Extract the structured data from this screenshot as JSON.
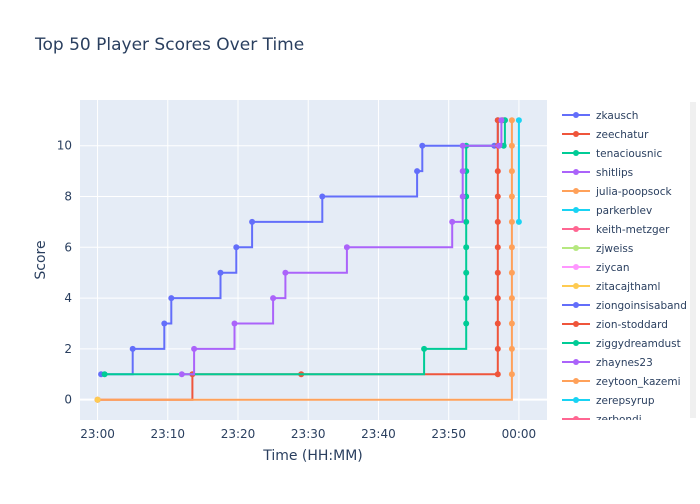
{
  "chart_data": {
    "type": "line",
    "line_shape": "step",
    "title": "Top 50 Player Scores Over Time",
    "xlabel": "Time (HH:MM)",
    "ylabel": "Score",
    "x_tick_labels": [
      "23:00",
      "23:10",
      "23:20",
      "23:30",
      "23:40",
      "23:50",
      "00:00"
    ],
    "y_ticks": [
      0,
      2,
      4,
      6,
      8,
      10
    ],
    "xlim": [
      "22:57:30",
      "00:04:00"
    ],
    "ylim": [
      -0.8,
      11.8
    ],
    "grid": true,
    "legend_position": "right",
    "background": "#e5ecf6",
    "series": [
      {
        "name": "zkausch",
        "color": "#636efa",
        "points": [
          [
            "23:00:30",
            1
          ],
          [
            "23:05:00",
            2
          ],
          [
            "23:09:30",
            3
          ],
          [
            "23:10:30",
            4
          ],
          [
            "23:17:30",
            5
          ],
          [
            "23:19:45",
            6
          ],
          [
            "23:22:00",
            7
          ],
          [
            "23:32:00",
            8
          ],
          [
            "23:45:30",
            9
          ],
          [
            "23:46:15",
            10
          ],
          [
            "23:56:30",
            10
          ],
          [
            "23:57:00",
            11
          ],
          [
            "23:58:00",
            11
          ]
        ]
      },
      {
        "name": "zeechatur",
        "color": "#ef553b",
        "points": [
          [
            "23:00:00",
            0
          ],
          [
            "23:13:30",
            1
          ],
          [
            "23:29:00",
            1
          ],
          [
            "23:57:00",
            1
          ],
          [
            "23:57:00",
            2
          ],
          [
            "23:57:00",
            3
          ],
          [
            "23:57:00",
            4
          ],
          [
            "23:57:00",
            5
          ],
          [
            "23:57:00",
            6
          ],
          [
            "23:57:00",
            7
          ],
          [
            "23:57:00",
            8
          ],
          [
            "23:57:00",
            9
          ],
          [
            "23:57:00",
            10
          ],
          [
            "23:57:00",
            11
          ],
          [
            "23:57:40",
            11
          ]
        ]
      },
      {
        "name": "tenaciousnic",
        "color": "#00cc96",
        "points": [
          [
            "23:01:00",
            1
          ],
          [
            "23:46:30",
            2
          ],
          [
            "23:52:30",
            3
          ],
          [
            "23:52:30",
            4
          ],
          [
            "23:52:30",
            5
          ],
          [
            "23:52:30",
            6
          ],
          [
            "23:52:30",
            7
          ],
          [
            "23:52:30",
            8
          ],
          [
            "23:52:30",
            9
          ],
          [
            "23:52:30",
            10
          ],
          [
            "23:57:50",
            10
          ],
          [
            "23:58:00",
            11
          ]
        ]
      },
      {
        "name": "shitlips",
        "color": "#ab63fa",
        "points": [
          [
            "23:12:00",
            1
          ],
          [
            "23:13:45",
            2
          ],
          [
            "23:19:30",
            3
          ],
          [
            "23:25:00",
            4
          ],
          [
            "23:26:45",
            5
          ],
          [
            "23:35:30",
            6
          ],
          [
            "23:50:30",
            7
          ],
          [
            "23:52:00",
            8
          ],
          [
            "23:52:00",
            9
          ],
          [
            "23:52:00",
            10
          ],
          [
            "23:57:10",
            10
          ],
          [
            "23:57:30",
            11
          ]
        ]
      },
      {
        "name": "julia-poopsock",
        "color": "#ffa15a",
        "points": [
          [
            "23:00:00",
            0
          ],
          [
            "23:59:00",
            1
          ],
          [
            "23:59:00",
            2
          ],
          [
            "23:59:00",
            3
          ],
          [
            "23:59:00",
            4
          ],
          [
            "23:59:00",
            5
          ],
          [
            "23:59:00",
            6
          ],
          [
            "23:59:00",
            7
          ],
          [
            "23:59:00",
            8
          ],
          [
            "23:59:00",
            9
          ],
          [
            "23:59:00",
            10
          ],
          [
            "23:59:00",
            11
          ]
        ]
      },
      {
        "name": "parkerblev",
        "color": "#19d3f3",
        "points": [
          [
            "00:00:00",
            7
          ],
          [
            "00:00:00",
            11
          ]
        ]
      },
      {
        "name": "keith-metzger",
        "color": "#ff6692",
        "points": []
      },
      {
        "name": "zjweiss",
        "color": "#b6e880",
        "points": []
      },
      {
        "name": "ziycan",
        "color": "#ff97ff",
        "points": []
      },
      {
        "name": "zitacajthaml",
        "color": "#fecb52",
        "points": [
          [
            "23:00:00",
            0
          ]
        ]
      },
      {
        "name": "ziongoinsisaband",
        "color": "#636efa",
        "points": []
      },
      {
        "name": "zion-stoddard",
        "color": "#ef553b",
        "points": []
      },
      {
        "name": "ziggydreamdust",
        "color": "#00cc96",
        "points": []
      },
      {
        "name": "zhaynes23",
        "color": "#ab63fa",
        "points": []
      },
      {
        "name": "zeytoon_kazemi",
        "color": "#ffa15a",
        "points": []
      },
      {
        "name": "zerepsyrup",
        "color": "#19d3f3",
        "points": []
      },
      {
        "name": "zerbondi",
        "color": "#ff6692",
        "points": []
      }
    ]
  }
}
